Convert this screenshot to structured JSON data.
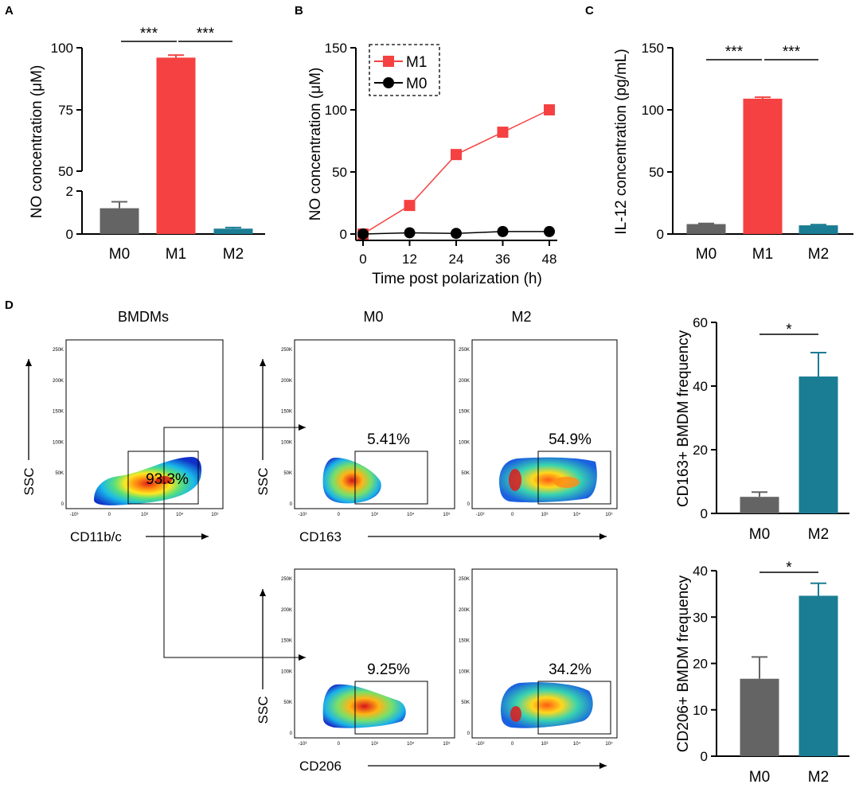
{
  "panel_labels": [
    "A",
    "B",
    "C",
    "D"
  ],
  "colors": {
    "M0": "#646464",
    "M1": "#f54141",
    "M2": "#1b7d94",
    "axis": "#000000"
  },
  "chart_data": [
    {
      "id": "A",
      "type": "bar",
      "categories": [
        "M0",
        "M1",
        "M2"
      ],
      "values": [
        1.2,
        96,
        0.25
      ],
      "errors": [
        0.3,
        1.0,
        0.05
      ],
      "ylabel": "NO concentration (μM)",
      "axis_break": {
        "lower": [
          0,
          2
        ],
        "upper": [
          50,
          100
        ]
      },
      "yticks": [
        "0",
        "2",
        "50",
        "75",
        "100"
      ],
      "significance": [
        {
          "from": "M0",
          "to": "M1",
          "label": "***"
        },
        {
          "from": "M1",
          "to": "M2",
          "label": "***"
        }
      ]
    },
    {
      "id": "B",
      "type": "line",
      "x": [
        0,
        12,
        24,
        36,
        48
      ],
      "xticks": [
        "0",
        "12",
        "24",
        "36",
        "48"
      ],
      "yticks": [
        "0",
        "50",
        "100",
        "150"
      ],
      "ylim": [
        0,
        150
      ],
      "xlabel": "Time post polarization (h)",
      "ylabel": "NO concentration (μM)",
      "legend_position": "top-left",
      "series": [
        {
          "name": "M1",
          "values": [
            0,
            23,
            64,
            82,
            100
          ],
          "marker": "square"
        },
        {
          "name": "M0",
          "values": [
            0,
            1,
            0.5,
            2,
            2
          ],
          "marker": "circle"
        }
      ]
    },
    {
      "id": "C",
      "type": "bar",
      "categories": [
        "M0",
        "M1",
        "M2"
      ],
      "values": [
        8,
        109,
        7
      ],
      "errors": [
        0.5,
        1.2,
        0.5
      ],
      "ylim": [
        0,
        150
      ],
      "yticks": [
        "0",
        "50",
        "100",
        "150"
      ],
      "ylabel": "IL-12 concentration (pg/mL)",
      "significance": [
        {
          "from": "M0",
          "to": "M1",
          "label": "***"
        },
        {
          "from": "M1",
          "to": "M2",
          "label": "***"
        }
      ]
    },
    {
      "id": "D-top",
      "type": "bar",
      "categories": [
        "M0",
        "M2"
      ],
      "values": [
        5.2,
        43
      ],
      "errors": [
        1.5,
        7.5
      ],
      "ylim": [
        0,
        60
      ],
      "yticks": [
        "0",
        "20",
        "40",
        "60"
      ],
      "ylabel": "CD163+ BMDM frequency",
      "significance": [
        {
          "from": "M0",
          "to": "M2",
          "label": "*"
        }
      ]
    },
    {
      "id": "D-bottom",
      "type": "bar",
      "categories": [
        "M0",
        "M2"
      ],
      "values": [
        16.7,
        34.6
      ],
      "errors": [
        4.7,
        2.7
      ],
      "ylim": [
        0,
        40
      ],
      "yticks": [
        "0",
        "10",
        "20",
        "30",
        "40"
      ],
      "ylabel": "CD206+ BMDM frequency",
      "significance": [
        {
          "from": "M0",
          "to": "M2",
          "label": "*"
        }
      ]
    }
  ],
  "flow": {
    "titles": {
      "bmdms": "BMDMs",
      "m0": "M0",
      "m2": "M2"
    },
    "ylabel": "SSC",
    "xlabels": {
      "bmdms": "CD11b/c",
      "cd163": "CD163",
      "cd206": "CD206"
    },
    "gates": {
      "bmdms": "93.3%",
      "m0_cd163": "5.41%",
      "m2_cd163": "54.9%",
      "m0_cd206": "9.25%",
      "m2_cd206": "34.2%"
    },
    "yticks": [
      "250K",
      "200K",
      "150K",
      "100K",
      "50K",
      "0"
    ],
    "xticks": [
      "-10³",
      "0",
      "10³",
      "10⁴",
      "10⁵"
    ]
  }
}
